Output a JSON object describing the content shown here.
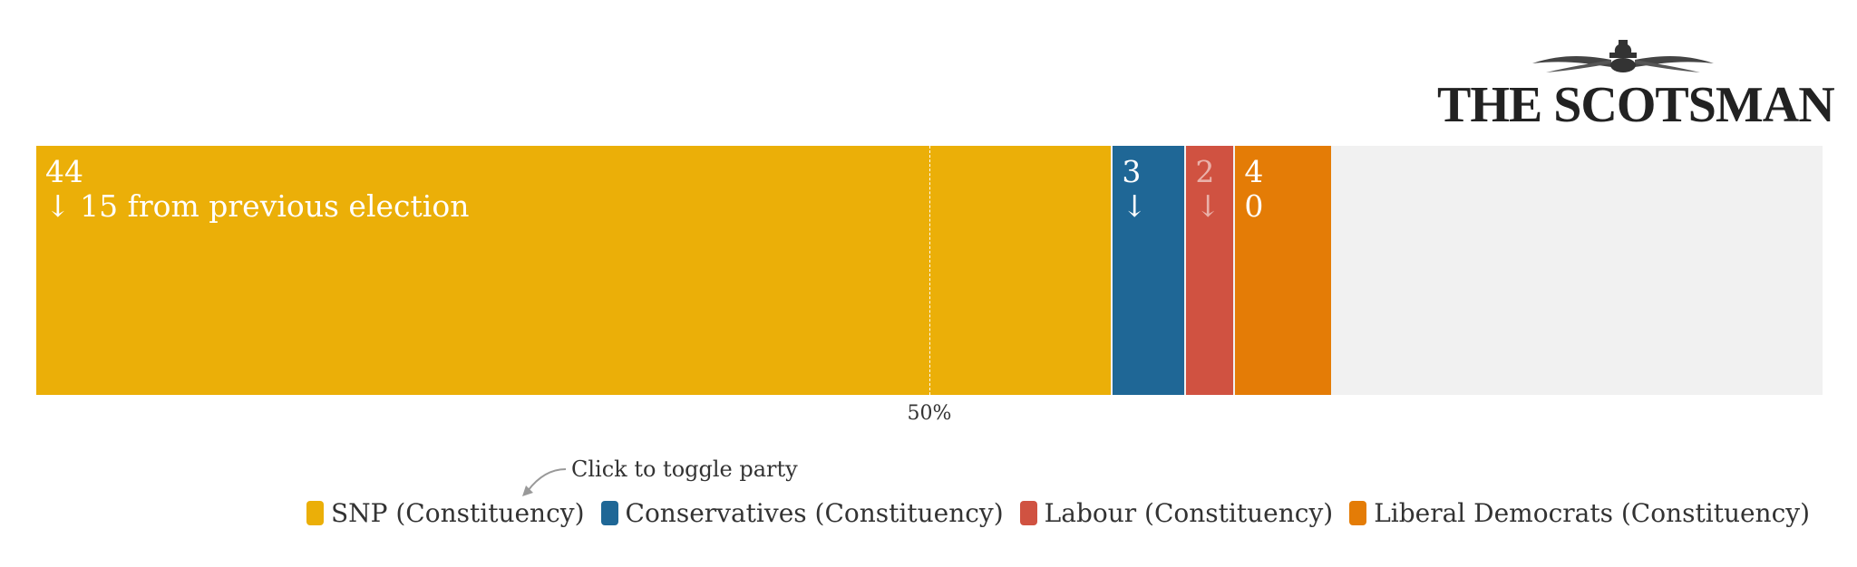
{
  "logo": {
    "text": "THE SCOTSMAN"
  },
  "chart_data": {
    "type": "bar",
    "orientation": "horizontal-stacked",
    "total_seats": 73,
    "series": [
      {
        "name": "SNP (Constituency)",
        "value": 44,
        "change_text": "↓ 15 from previous election",
        "color": "#ebaf08"
      },
      {
        "name": "Conservatives (Constituency)",
        "value": 3,
        "change_text": "↓",
        "color": "#1f6796"
      },
      {
        "name": "Labour (Constituency)",
        "value": 2,
        "change_text": "↓",
        "color": "#d05241"
      },
      {
        "name": "Liberal Democrats (Constituency)",
        "value": 4,
        "change_text": "0",
        "color": "#e47c06"
      }
    ],
    "background_color": "#f1f1f1",
    "midline": {
      "value": 0.5,
      "label": "50%"
    },
    "legend_placement": "bottom-right",
    "hint": "Click to toggle party"
  }
}
